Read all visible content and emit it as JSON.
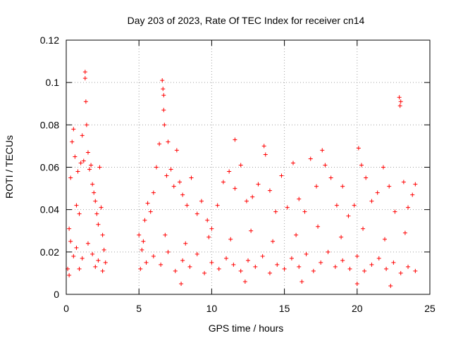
{
  "chart_data": {
    "type": "scatter",
    "title": "Day 203 of 2023, Rate Of TEC Index for receiver cn14",
    "xlabel": "GPS time / hours",
    "ylabel": "ROTI / TECUs",
    "xlim": [
      0,
      25
    ],
    "ylim": [
      0,
      0.12
    ],
    "x_ticks": [
      "0",
      "5",
      "10",
      "15",
      "20",
      "25"
    ],
    "y_ticks": [
      "0",
      "0.02",
      "0.04",
      "0.06",
      "0.08",
      "0.1",
      "0.12"
    ],
    "grid": true,
    "marker": "plus",
    "color": "#ff0000",
    "series": [
      {
        "points": [
          [
            0.1,
            0.012
          ],
          [
            0.2,
            0.031
          ],
          [
            0.3,
            0.055
          ],
          [
            0.4,
            0.072
          ],
          [
            0.5,
            0.078
          ],
          [
            0.6,
            0.065
          ],
          [
            0.7,
            0.042
          ],
          [
            0.8,
            0.058
          ],
          [
            0.9,
            0.038
          ],
          [
            1.0,
            0.062
          ],
          [
            1.1,
            0.075
          ],
          [
            1.2,
            0.063
          ],
          [
            1.3,
            0.105
          ],
          [
            1.3,
            0.102
          ],
          [
            1.35,
            0.091
          ],
          [
            1.4,
            0.08
          ],
          [
            1.5,
            0.067
          ],
          [
            1.6,
            0.059
          ],
          [
            1.7,
            0.061
          ],
          [
            1.8,
            0.052
          ],
          [
            1.9,
            0.048
          ],
          [
            2.0,
            0.044
          ],
          [
            2.1,
            0.038
          ],
          [
            2.2,
            0.033
          ],
          [
            2.3,
            0.06
          ],
          [
            2.4,
            0.041
          ],
          [
            2.5,
            0.028
          ],
          [
            2.6,
            0.021
          ],
          [
            2.7,
            0.015
          ],
          [
            0.3,
            0.025
          ],
          [
            0.5,
            0.018
          ],
          [
            0.7,
            0.022
          ],
          [
            0.9,
            0.012
          ],
          [
            1.1,
            0.017
          ],
          [
            1.5,
            0.024
          ],
          [
            1.8,
            0.019
          ],
          [
            2.0,
            0.013
          ],
          [
            2.2,
            0.016
          ],
          [
            2.5,
            0.011
          ],
          [
            0.2,
            0.009
          ],
          [
            5.0,
            0.028
          ],
          [
            5.2,
            0.021
          ],
          [
            5.4,
            0.035
          ],
          [
            5.6,
            0.043
          ],
          [
            5.8,
            0.039
          ],
          [
            6.0,
            0.048
          ],
          [
            6.2,
            0.06
          ],
          [
            6.4,
            0.071
          ],
          [
            6.6,
            0.101
          ],
          [
            6.65,
            0.097
          ],
          [
            6.7,
            0.094
          ],
          [
            6.7,
            0.087
          ],
          [
            6.75,
            0.08
          ],
          [
            6.9,
            0.056
          ],
          [
            7.0,
            0.072
          ],
          [
            7.2,
            0.059
          ],
          [
            7.4,
            0.051
          ],
          [
            7.6,
            0.068
          ],
          [
            7.8,
            0.053
          ],
          [
            8.0,
            0.047
          ],
          [
            8.3,
            0.042
          ],
          [
            8.6,
            0.055
          ],
          [
            9.0,
            0.038
          ],
          [
            9.3,
            0.044
          ],
          [
            9.7,
            0.035
          ],
          [
            10.0,
            0.031
          ],
          [
            10.4,
            0.042
          ],
          [
            10.8,
            0.053
          ],
          [
            11.2,
            0.058
          ],
          [
            11.6,
            0.073
          ],
          [
            11.6,
            0.05
          ],
          [
            12.0,
            0.061
          ],
          [
            12.4,
            0.044
          ],
          [
            12.8,
            0.046
          ],
          [
            13.2,
            0.052
          ],
          [
            13.6,
            0.07
          ],
          [
            13.7,
            0.066
          ],
          [
            14.0,
            0.049
          ],
          [
            14.4,
            0.039
          ],
          [
            14.8,
            0.056
          ],
          [
            15.2,
            0.041
          ],
          [
            15.6,
            0.062
          ],
          [
            16.0,
            0.045
          ],
          [
            16.4,
            0.039
          ],
          [
            16.8,
            0.064
          ],
          [
            17.2,
            0.051
          ],
          [
            17.6,
            0.068
          ],
          [
            17.8,
            0.061
          ],
          [
            18.2,
            0.055
          ],
          [
            18.6,
            0.042
          ],
          [
            19.0,
            0.051
          ],
          [
            19.4,
            0.037
          ],
          [
            19.8,
            0.042
          ],
          [
            20.1,
            0.069
          ],
          [
            20.3,
            0.061
          ],
          [
            20.6,
            0.055
          ],
          [
            21.0,
            0.044
          ],
          [
            21.4,
            0.048
          ],
          [
            21.8,
            0.06
          ],
          [
            22.2,
            0.051
          ],
          [
            22.6,
            0.039
          ],
          [
            22.9,
            0.093
          ],
          [
            22.95,
            0.089
          ],
          [
            23.0,
            0.091
          ],
          [
            23.2,
            0.053
          ],
          [
            23.5,
            0.041
          ],
          [
            23.8,
            0.047
          ],
          [
            24.0,
            0.052
          ],
          [
            5.1,
            0.012
          ],
          [
            5.5,
            0.015
          ],
          [
            6.0,
            0.018
          ],
          [
            6.5,
            0.014
          ],
          [
            7.0,
            0.02
          ],
          [
            7.5,
            0.011
          ],
          [
            8.0,
            0.016
          ],
          [
            8.5,
            0.013
          ],
          [
            9.0,
            0.019
          ],
          [
            9.5,
            0.01
          ],
          [
            10.0,
            0.015
          ],
          [
            10.5,
            0.012
          ],
          [
            11.0,
            0.017
          ],
          [
            11.5,
            0.014
          ],
          [
            12.0,
            0.011
          ],
          [
            12.5,
            0.016
          ],
          [
            13.0,
            0.013
          ],
          [
            13.5,
            0.018
          ],
          [
            14.0,
            0.01
          ],
          [
            14.5,
            0.014
          ],
          [
            15.0,
            0.012
          ],
          [
            15.5,
            0.017
          ],
          [
            16.0,
            0.013
          ],
          [
            16.5,
            0.019
          ],
          [
            17.0,
            0.011
          ],
          [
            17.5,
            0.015
          ],
          [
            18.0,
            0.02
          ],
          [
            18.5,
            0.013
          ],
          [
            19.0,
            0.016
          ],
          [
            19.5,
            0.012
          ],
          [
            20.0,
            0.018
          ],
          [
            20.5,
            0.011
          ],
          [
            21.0,
            0.014
          ],
          [
            21.5,
            0.017
          ],
          [
            22.0,
            0.012
          ],
          [
            22.5,
            0.015
          ],
          [
            23.0,
            0.01
          ],
          [
            23.5,
            0.013
          ],
          [
            24.0,
            0.011
          ],
          [
            5.3,
            0.025
          ],
          [
            6.8,
            0.028
          ],
          [
            8.2,
            0.024
          ],
          [
            9.8,
            0.027
          ],
          [
            11.3,
            0.026
          ],
          [
            12.7,
            0.03
          ],
          [
            14.2,
            0.025
          ],
          [
            15.8,
            0.028
          ],
          [
            17.3,
            0.032
          ],
          [
            18.9,
            0.027
          ],
          [
            20.4,
            0.031
          ],
          [
            21.9,
            0.026
          ],
          [
            23.3,
            0.029
          ],
          [
            7.9,
            0.005
          ],
          [
            12.3,
            0.006
          ],
          [
            16.2,
            0.006
          ],
          [
            20.0,
            0.005
          ],
          [
            22.3,
            0.004
          ]
        ]
      }
    ]
  }
}
